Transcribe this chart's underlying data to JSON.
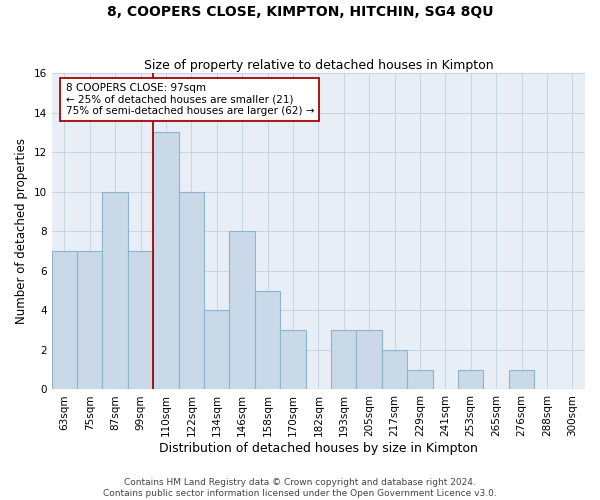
{
  "title": "8, COOPERS CLOSE, KIMPTON, HITCHIN, SG4 8QU",
  "subtitle": "Size of property relative to detached houses in Kimpton",
  "xlabel": "Distribution of detached houses by size in Kimpton",
  "ylabel": "Number of detached properties",
  "bar_labels": [
    "63sqm",
    "75sqm",
    "87sqm",
    "99sqm",
    "110sqm",
    "122sqm",
    "134sqm",
    "146sqm",
    "158sqm",
    "170sqm",
    "182sqm",
    "193sqm",
    "205sqm",
    "217sqm",
    "229sqm",
    "241sqm",
    "253sqm",
    "265sqm",
    "276sqm",
    "288sqm",
    "300sqm"
  ],
  "bar_values": [
    7,
    7,
    10,
    7,
    13,
    10,
    4,
    8,
    5,
    3,
    0,
    3,
    3,
    2,
    1,
    0,
    1,
    0,
    1,
    0,
    0
  ],
  "bar_color": "#c9d9e8",
  "bar_edgecolor": "#8ab4d0",
  "vline_x": 4.0,
  "vline_color": "#aa0000",
  "annotation_text": "8 COOPERS CLOSE: 97sqm\n← 25% of detached houses are smaller (21)\n75% of semi-detached houses are larger (62) →",
  "annotation_box_color": "#ffffff",
  "annotation_box_edgecolor": "#aa0000",
  "ylim": [
    0,
    16
  ],
  "yticks": [
    0,
    2,
    4,
    6,
    8,
    10,
    12,
    14,
    16
  ],
  "grid_color": "#c8d4e4",
  "background_color": "#e8eef6",
  "footer_line1": "Contains HM Land Registry data © Crown copyright and database right 2024.",
  "footer_line2": "Contains public sector information licensed under the Open Government Licence v3.0.",
  "title_fontsize": 10,
  "subtitle_fontsize": 9,
  "xlabel_fontsize": 9,
  "ylabel_fontsize": 8.5,
  "tick_fontsize": 7.5,
  "annotation_fontsize": 7.5,
  "footer_fontsize": 6.5
}
